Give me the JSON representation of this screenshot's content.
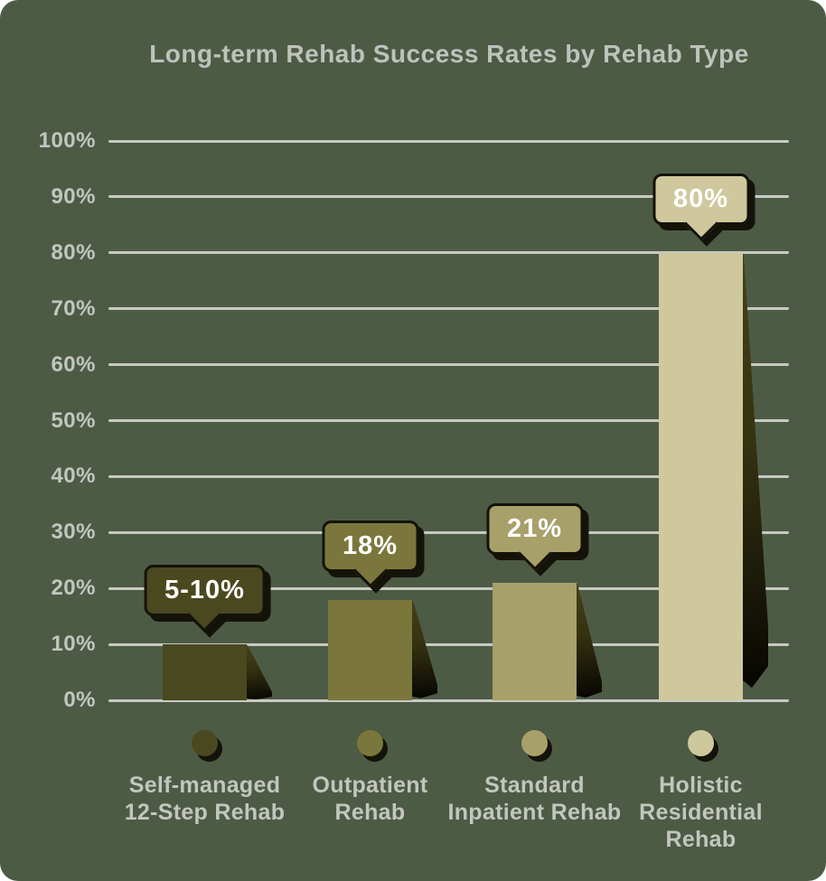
{
  "title": "Long-term Rehab Success Rates by Rehab Type",
  "colors": {
    "background": "#4D5B45",
    "title_text": "#BFC2BC",
    "axis_text": "#C3C6BF",
    "gridline": "#C7CAC3",
    "outline_shadow": "#14130A",
    "callout_text": "#FFFFFF"
  },
  "chart_data": {
    "type": "bar",
    "title": "Long-term Rehab Success Rates by Rehab Type",
    "categories": [
      "Self-managed 12-Step Rehab",
      "Outpatient Rehab",
      "Standard Inpatient Rehab",
      "Holistic Residential Rehab"
    ],
    "category_lines": [
      [
        "Self-managed",
        "12-Step Rehab"
      ],
      [
        "Outpatient",
        "Rehab"
      ],
      [
        "Standard",
        "Inpatient Rehab"
      ],
      [
        "Holistic",
        "Residential",
        "Rehab"
      ]
    ],
    "values": [
      10,
      18,
      21,
      80
    ],
    "data_labels": [
      "5-10%",
      "18%",
      "21%",
      "80%"
    ],
    "bar_colors": [
      "#4A481F",
      "#7B773C",
      "#A8A069",
      "#CEC89C"
    ],
    "y_ticks": [
      "0%",
      "10%",
      "20%",
      "30%",
      "40%",
      "50%",
      "60%",
      "70%",
      "80%",
      "90%",
      "100%"
    ],
    "ylim": [
      0,
      100
    ],
    "xlabel": "",
    "ylabel": "",
    "grid": true,
    "legend_position": "dots-below-bars"
  }
}
